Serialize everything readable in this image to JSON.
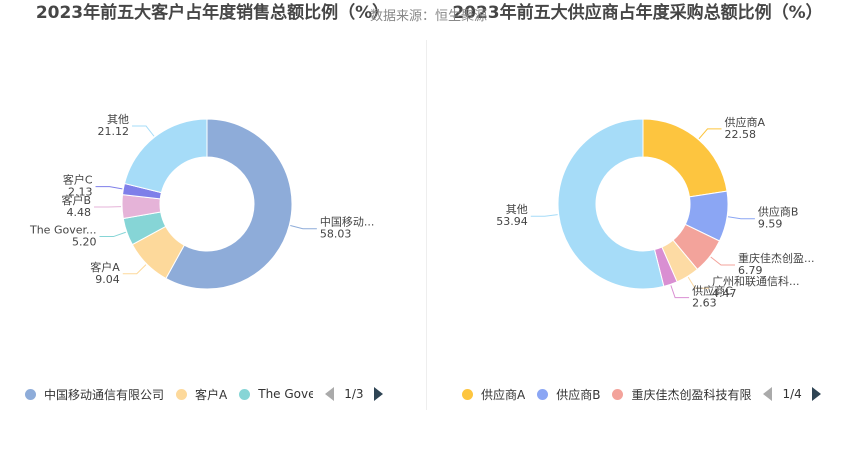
{
  "header": {
    "source_label": "数据来源：恒生聚源"
  },
  "chart_data": [
    {
      "type": "pie",
      "title": "2023年前五大客户占年度销售总额比例（%）",
      "slices": [
        {
          "name": "中国移动通信有限公司",
          "label": "中国移动...",
          "value": 58.03,
          "color": "#8eacd9"
        },
        {
          "name": "客户A",
          "label": "客户A",
          "value": 9.04,
          "color": "#fdd99b"
        },
        {
          "name": "The Government...",
          "label": "The Gover...",
          "value": 5.2,
          "color": "#86d5d6"
        },
        {
          "name": "客户B",
          "label": "客户B",
          "value": 4.48,
          "color": "#e5b3d8"
        },
        {
          "name": "客户C",
          "label": "客户C",
          "value": 2.13,
          "color": "#7f7fe9"
        },
        {
          "name": "其他",
          "label": "其他",
          "value": 21.12,
          "color": "#a6dcf8"
        }
      ],
      "legend": {
        "items": [
          "中国移动通信有限公司",
          "客户A",
          "The Gove"
        ],
        "page": "1/3"
      }
    },
    {
      "type": "pie",
      "title": "2023年前五大供应商占年度采购总额比例（%）",
      "slices": [
        {
          "name": "供应商A",
          "label": "供应商A",
          "value": 22.58,
          "color": "#fdc53f"
        },
        {
          "name": "供应商B",
          "label": "供应商B",
          "value": 9.59,
          "color": "#8ba6f4"
        },
        {
          "name": "重庆佳杰创盈科技有限公司",
          "label": "重庆佳杰创盈...",
          "value": 6.79,
          "color": "#f3a39b"
        },
        {
          "name": "广州和联通信科技有限公司",
          "label": "广州和联通信科...",
          "value": 4.47,
          "color": "#fddba4"
        },
        {
          "name": "供应商C",
          "label": "供应商C",
          "value": 2.63,
          "color": "#d98fd2"
        },
        {
          "name": "其他",
          "label": "其他",
          "value": 53.94,
          "color": "#a6dcf8"
        }
      ],
      "legend": {
        "items": [
          "供应商A",
          "供应商B",
          "重庆佳杰创盈科技有限"
        ],
        "page": "1/4"
      }
    }
  ]
}
